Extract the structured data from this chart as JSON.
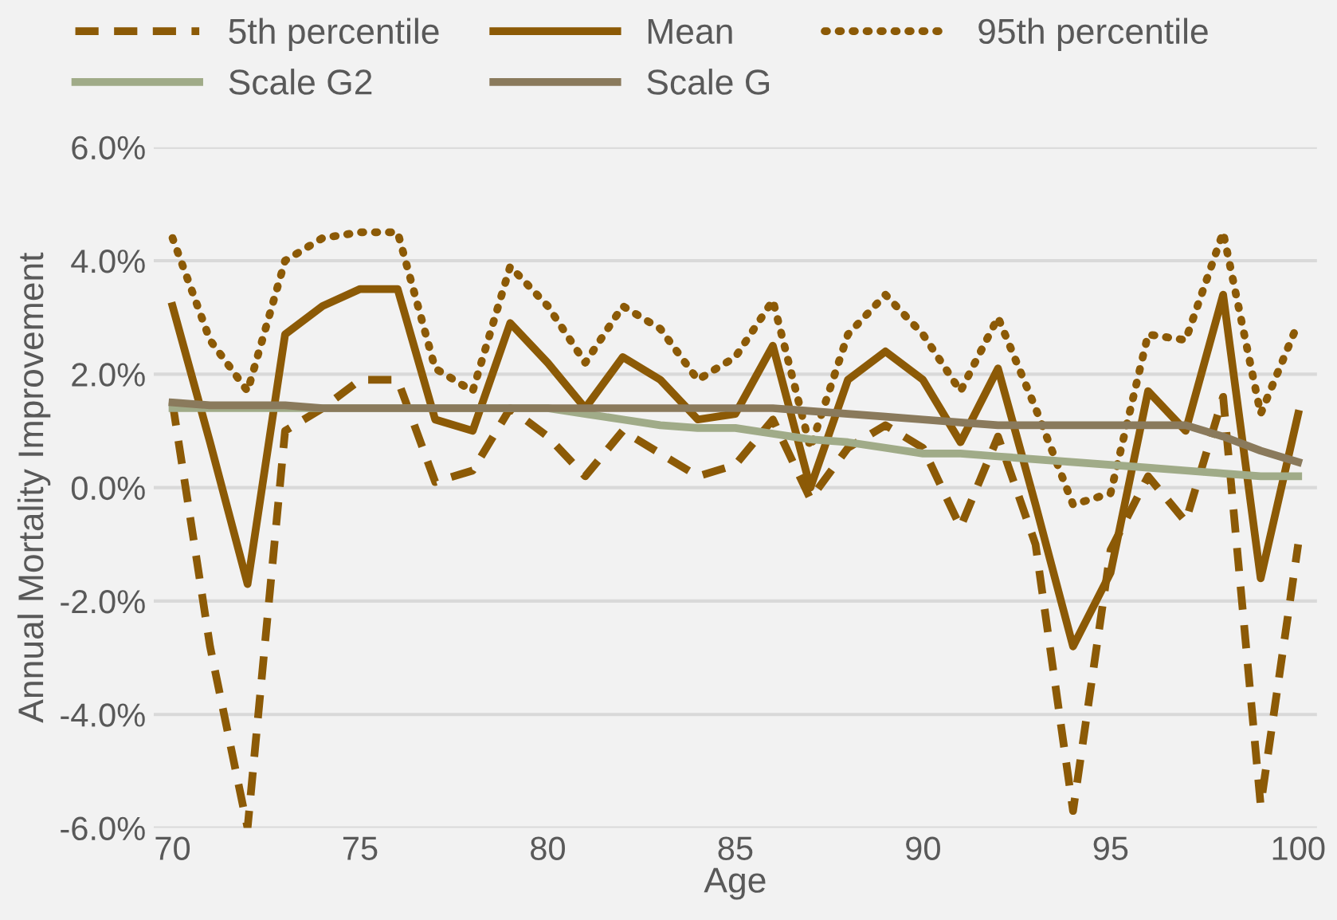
{
  "chart_data": {
    "type": "line",
    "xlabel": "Age",
    "ylabel": "Annual Mortality Improvement",
    "x": [
      70,
      71,
      72,
      73,
      74,
      75,
      76,
      77,
      78,
      79,
      80,
      81,
      82,
      83,
      84,
      85,
      86,
      87,
      88,
      89,
      90,
      91,
      92,
      93,
      94,
      95,
      96,
      97,
      98,
      99,
      100
    ],
    "series": [
      {
        "name": "5th percentile",
        "color": "#8c5a06",
        "line_style": "dashed",
        "values": [
          1.5,
          -2.8,
          -6.0,
          1.0,
          1.4,
          1.9,
          1.9,
          0.1,
          0.3,
          1.4,
          0.9,
          0.2,
          1.0,
          0.6,
          0.2,
          0.4,
          1.2,
          -0.2,
          0.7,
          1.1,
          0.7,
          -0.7,
          0.9,
          -1.0,
          -5.7,
          -1.1,
          0.2,
          -0.6,
          1.6,
          -5.6,
          -1.0
        ]
      },
      {
        "name": "Mean",
        "color": "#8c5a06",
        "line_style": "solid",
        "values": [
          3.2,
          0.8,
          -1.7,
          2.7,
          3.2,
          3.5,
          3.5,
          1.2,
          1.0,
          2.9,
          2.2,
          1.4,
          2.3,
          1.9,
          1.2,
          1.3,
          2.5,
          0.0,
          1.9,
          2.4,
          1.9,
          0.8,
          2.1,
          -0.3,
          -2.8,
          -1.5,
          1.7,
          1.0,
          3.4,
          -1.6,
          1.3
        ]
      },
      {
        "name": "95th percentile",
        "color": "#8c5a06",
        "line_style": "dotted",
        "values": [
          4.4,
          2.6,
          1.7,
          4.0,
          4.4,
          4.5,
          4.5,
          2.1,
          1.7,
          3.9,
          3.2,
          2.2,
          3.2,
          2.8,
          1.9,
          2.3,
          3.3,
          0.7,
          2.7,
          3.4,
          2.7,
          1.7,
          3.0,
          1.4,
          -0.3,
          -0.1,
          2.7,
          2.6,
          4.5,
          1.3,
          2.9
        ]
      },
      {
        "name": "Scale G2",
        "color": "#a0ab88",
        "line_style": "solid",
        "values": [
          1.4,
          1.4,
          1.4,
          1.4,
          1.4,
          1.4,
          1.4,
          1.4,
          1.4,
          1.4,
          1.4,
          1.3,
          1.2,
          1.1,
          1.05,
          1.05,
          0.95,
          0.85,
          0.8,
          0.7,
          0.6,
          0.6,
          0.55,
          0.5,
          0.45,
          0.4,
          0.35,
          0.3,
          0.25,
          0.2,
          0.2
        ]
      },
      {
        "name": "Scale G",
        "color": "#8a7a5c",
        "line_style": "solid",
        "values": [
          1.5,
          1.45,
          1.45,
          1.45,
          1.4,
          1.4,
          1.4,
          1.4,
          1.4,
          1.4,
          1.4,
          1.4,
          1.4,
          1.4,
          1.4,
          1.4,
          1.4,
          1.35,
          1.3,
          1.25,
          1.2,
          1.15,
          1.1,
          1.1,
          1.1,
          1.1,
          1.1,
          1.1,
          0.9,
          0.65,
          0.45
        ]
      }
    ],
    "xlim": [
      69.5,
      100.5
    ],
    "xticks": [
      70,
      75,
      80,
      85,
      90,
      95,
      100
    ],
    "ylim": [
      -6,
      6
    ],
    "yticks": [
      {
        "value": -6,
        "label": "-6.0%"
      },
      {
        "value": -4,
        "label": "-4.0%"
      },
      {
        "value": -2,
        "label": "-2.0%"
      },
      {
        "value": 0,
        "label": "0.0%"
      },
      {
        "value": 2,
        "label": "2.0%"
      },
      {
        "value": 4,
        "label": "4.0%"
      },
      {
        "value": 6,
        "label": "6.0%"
      }
    ],
    "grid": "y",
    "legend": "top"
  }
}
